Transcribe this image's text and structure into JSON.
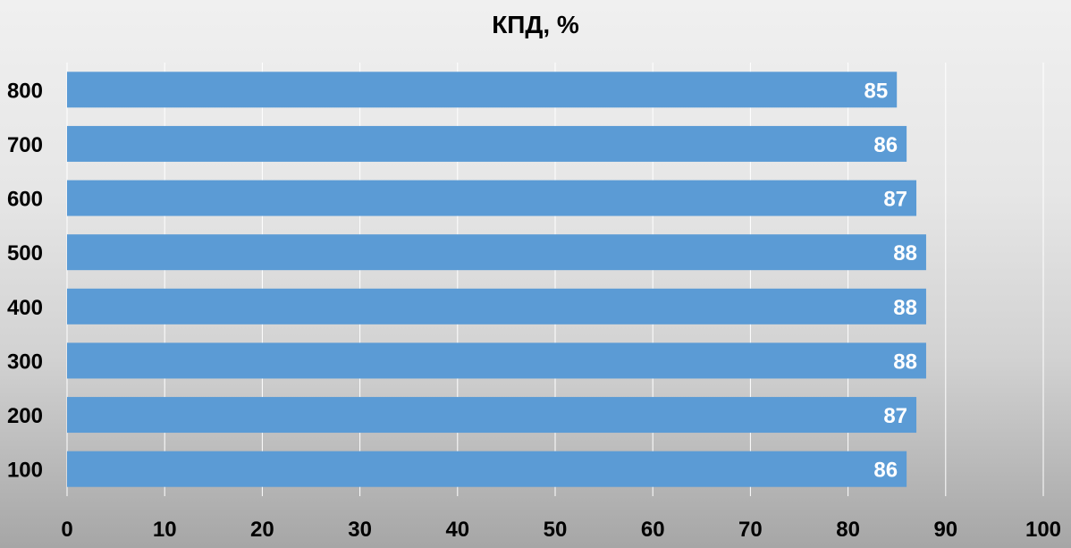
{
  "chart_data": {
    "type": "bar",
    "orientation": "horizontal",
    "title": "КПД, %",
    "xlabel": "",
    "ylabel": "",
    "categories": [
      "100",
      "200",
      "300",
      "400",
      "500",
      "600",
      "700",
      "800"
    ],
    "values": [
      86,
      87,
      88,
      88,
      88,
      87,
      86,
      85
    ],
    "xlim": [
      0,
      100
    ],
    "xticks": [
      "0",
      "10",
      "20",
      "30",
      "40",
      "50",
      "60",
      "70",
      "80",
      "90",
      "100"
    ],
    "grid": "vertical",
    "legend": "none",
    "data_labels": true,
    "colors": {
      "bar": "#5b9bd5",
      "data_label": "#ffffff",
      "gridline": "#ffffff",
      "text": "#000000"
    }
  }
}
